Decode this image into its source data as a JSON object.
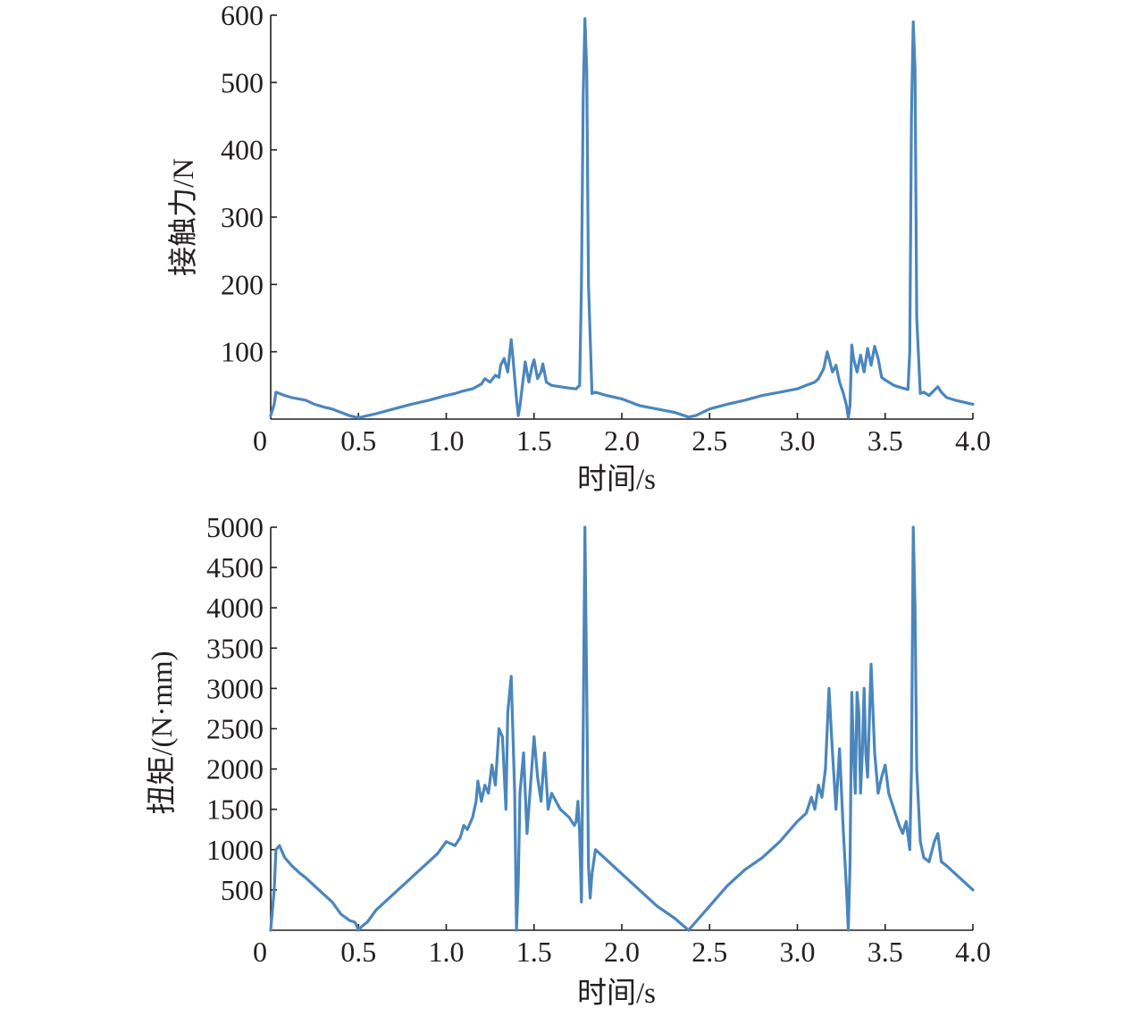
{
  "colors": {
    "series": "#4a86bd",
    "axis": "#231f20"
  },
  "chart_data": [
    {
      "type": "line",
      "xlabel": "时间/s",
      "ylabel": "接触力/N",
      "xlim": [
        0,
        4.0
      ],
      "ylim": [
        0,
        600
      ],
      "xticks": [
        "0",
        "0.5",
        "1.0",
        "1.5",
        "2.0",
        "2.5",
        "3.0",
        "3.5",
        "4.0"
      ],
      "xtick_values": [
        0,
        0.5,
        1.0,
        1.5,
        2.0,
        2.5,
        3.0,
        3.5,
        4.0
      ],
      "yticks": [
        "100",
        "200",
        "300",
        "400",
        "500",
        "600"
      ],
      "ytick_values": [
        100,
        200,
        300,
        400,
        500,
        600
      ],
      "series": [
        {
          "x": [
            0,
            0.02,
            0.03,
            0.05,
            0.08,
            0.12,
            0.16,
            0.2,
            0.25,
            0.3,
            0.35,
            0.4,
            0.45,
            0.5,
            0.55,
            0.6,
            0.7,
            0.8,
            0.9,
            1.0,
            1.05,
            1.1,
            1.15,
            1.2,
            1.22,
            1.25,
            1.28,
            1.3,
            1.31,
            1.33,
            1.35,
            1.37,
            1.38,
            1.4,
            1.41,
            1.42,
            1.45,
            1.47,
            1.49,
            1.5,
            1.52,
            1.54,
            1.55,
            1.57,
            1.6,
            1.65,
            1.7,
            1.74,
            1.76,
            1.77,
            1.78,
            1.79,
            1.8,
            1.81,
            1.83,
            1.85,
            1.9,
            2.0,
            2.1,
            2.2,
            2.3,
            2.38,
            2.42,
            2.5,
            2.6,
            2.7,
            2.8,
            2.9,
            3.0,
            3.05,
            3.1,
            3.12,
            3.15,
            3.17,
            3.18,
            3.2,
            3.22,
            3.24,
            3.26,
            3.28,
            3.29,
            3.3,
            3.31,
            3.32,
            3.34,
            3.36,
            3.38,
            3.4,
            3.42,
            3.44,
            3.46,
            3.48,
            3.5,
            3.55,
            3.6,
            3.63,
            3.64,
            3.65,
            3.66,
            3.67,
            3.68,
            3.7,
            3.72,
            3.75,
            3.8,
            3.82,
            3.85,
            3.9,
            4.0
          ],
          "values": [
            5,
            22,
            40,
            38,
            35,
            32,
            30,
            28,
            22,
            18,
            15,
            10,
            5,
            2,
            5,
            8,
            15,
            22,
            28,
            35,
            38,
            42,
            45,
            52,
            60,
            55,
            65,
            62,
            80,
            90,
            70,
            118,
            90,
            30,
            5,
            20,
            85,
            55,
            80,
            88,
            60,
            70,
            82,
            55,
            50,
            48,
            46,
            45,
            50,
            200,
            480,
            595,
            520,
            200,
            38,
            40,
            36,
            30,
            20,
            15,
            10,
            3,
            5,
            15,
            22,
            28,
            35,
            40,
            45,
            50,
            55,
            60,
            75,
            100,
            90,
            70,
            80,
            55,
            40,
            20,
            2,
            20,
            110,
            90,
            70,
            95,
            70,
            105,
            80,
            108,
            90,
            62,
            58,
            50,
            46,
            44,
            100,
            450,
            590,
            520,
            150,
            38,
            40,
            35,
            48,
            40,
            32,
            28,
            22
          ],
          "color": "#4a86bd"
        }
      ]
    },
    {
      "type": "line",
      "xlabel": "时间/s",
      "ylabel": "扭矩/(N·mm)",
      "xlim": [
        0,
        4.0
      ],
      "ylim": [
        0,
        5000
      ],
      "xticks": [
        "0",
        "0.5",
        "1.0",
        "1.5",
        "2.0",
        "2.5",
        "3.0",
        "3.5",
        "4.0"
      ],
      "xtick_values": [
        0,
        0.5,
        1.0,
        1.5,
        2.0,
        2.5,
        3.0,
        3.5,
        4.0
      ],
      "yticks": [
        "500",
        "1000",
        "1500",
        "2000",
        "2500",
        "3000",
        "3500",
        "4000",
        "4500",
        "5000"
      ],
      "ytick_values": [
        500,
        1000,
        1500,
        2000,
        2500,
        3000,
        3500,
        4000,
        4500,
        5000
      ],
      "series": [
        {
          "x": [
            0,
            0.02,
            0.03,
            0.05,
            0.08,
            0.12,
            0.16,
            0.2,
            0.25,
            0.3,
            0.35,
            0.4,
            0.45,
            0.48,
            0.5,
            0.52,
            0.55,
            0.6,
            0.7,
            0.8,
            0.9,
            0.95,
            1.0,
            1.05,
            1.08,
            1.1,
            1.12,
            1.15,
            1.17,
            1.18,
            1.2,
            1.22,
            1.24,
            1.26,
            1.28,
            1.3,
            1.32,
            1.34,
            1.35,
            1.37,
            1.39,
            1.4,
            1.41,
            1.42,
            1.44,
            1.46,
            1.48,
            1.5,
            1.52,
            1.54,
            1.56,
            1.58,
            1.6,
            1.65,
            1.7,
            1.73,
            1.74,
            1.75,
            1.76,
            1.77,
            1.78,
            1.79,
            1.8,
            1.81,
            1.82,
            1.83,
            1.85,
            1.9,
            2.0,
            2.1,
            2.2,
            2.3,
            2.38,
            2.42,
            2.5,
            2.6,
            2.7,
            2.8,
            2.9,
            3.0,
            3.05,
            3.08,
            3.1,
            3.12,
            3.14,
            3.16,
            3.18,
            3.2,
            3.22,
            3.24,
            3.26,
            3.28,
            3.29,
            3.3,
            3.31,
            3.32,
            3.33,
            3.34,
            3.35,
            3.36,
            3.37,
            3.38,
            3.39,
            3.4,
            3.42,
            3.44,
            3.46,
            3.48,
            3.5,
            3.52,
            3.55,
            3.58,
            3.6,
            3.62,
            3.64,
            3.65,
            3.66,
            3.67,
            3.68,
            3.7,
            3.72,
            3.75,
            3.78,
            3.8,
            3.82,
            3.85,
            3.9,
            3.95,
            4.0
          ],
          "values": [
            0,
            500,
            1000,
            1050,
            900,
            800,
            720,
            650,
            550,
            450,
            350,
            200,
            120,
            100,
            0,
            50,
            100,
            250,
            450,
            650,
            850,
            950,
            1100,
            1050,
            1150,
            1300,
            1250,
            1400,
            1600,
            1850,
            1600,
            1800,
            1700,
            2050,
            1800,
            2500,
            2400,
            1500,
            2700,
            3150,
            1700,
            0,
            600,
            1700,
            2200,
            1200,
            1800,
            2400,
            1900,
            1600,
            2200,
            1500,
            1700,
            1500,
            1400,
            1300,
            1350,
            1600,
            1200,
            350,
            2500,
            5000,
            3000,
            800,
            400,
            700,
            1000,
            900,
            700,
            500,
            300,
            150,
            0,
            100,
            300,
            550,
            750,
            900,
            1100,
            1350,
            1450,
            1650,
            1500,
            1800,
            1650,
            2000,
            3000,
            2200,
            1500,
            2250,
            1300,
            500,
            0,
            800,
            2950,
            2200,
            1700,
            2950,
            2700,
            1700,
            2200,
            3000,
            2200,
            1900,
            3300,
            2200,
            1700,
            1900,
            2050,
            1700,
            1500,
            1300,
            1200,
            1350,
            1000,
            2000,
            5000,
            4000,
            2000,
            1100,
            900,
            850,
            1100,
            1200,
            850,
            800,
            700,
            600,
            500
          ],
          "color": "#4a86bd"
        }
      ]
    }
  ]
}
